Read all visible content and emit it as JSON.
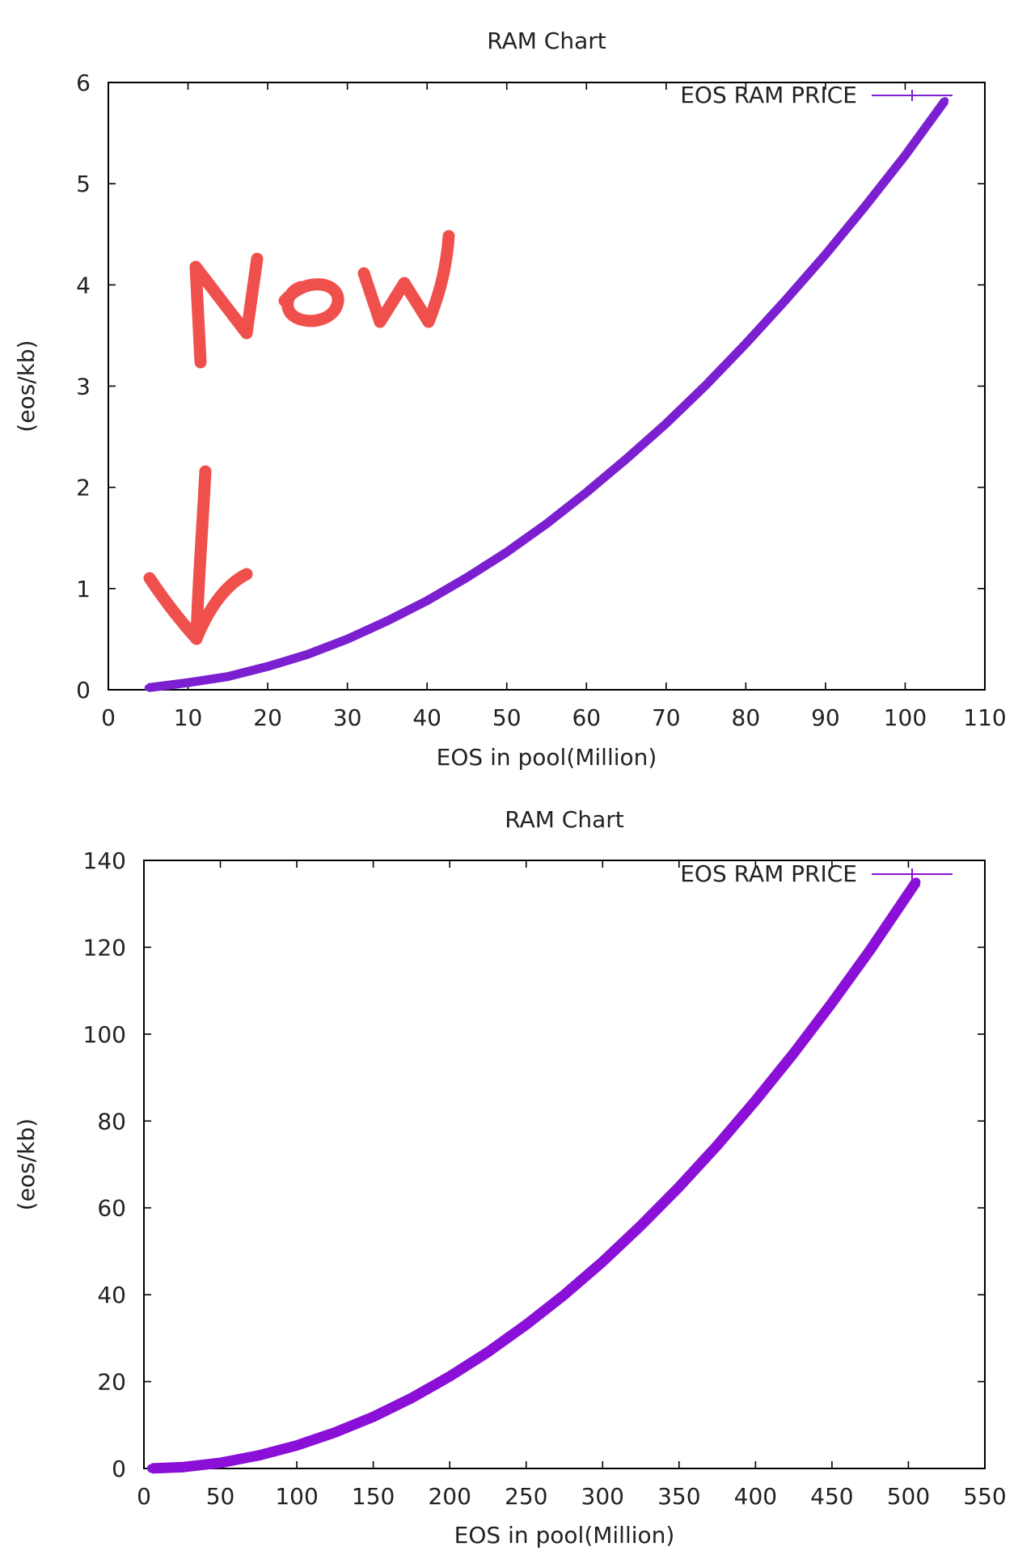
{
  "chart_data": [
    {
      "type": "line",
      "title": "RAM Chart",
      "xlabel": "EOS in pool(Million)",
      "ylabel": "(eos/kb)",
      "xlim": [
        0,
        110
      ],
      "ylim": [
        0,
        6
      ],
      "xticks": [
        "0",
        "10",
        "20",
        "30",
        "40",
        "50",
        "60",
        "70",
        "80",
        "90",
        "100",
        "110"
      ],
      "yticks": [
        "0",
        "1",
        "2",
        "3",
        "4",
        "5",
        "6"
      ],
      "grid": false,
      "legend_position": "top-right",
      "series": [
        {
          "name": "EOS RAM PRICE",
          "color": "#7b1fd0",
          "x": [
            5,
            10,
            15,
            20,
            25,
            30,
            35,
            40,
            45,
            50,
            55,
            60,
            65,
            70,
            75,
            80,
            85,
            90,
            95,
            100,
            105
          ],
          "y": [
            0.02,
            0.07,
            0.13,
            0.23,
            0.35,
            0.5,
            0.68,
            0.88,
            1.11,
            1.36,
            1.64,
            1.95,
            2.28,
            2.63,
            3.01,
            3.42,
            3.85,
            4.3,
            4.78,
            5.28,
            5.82
          ]
        }
      ],
      "annotation": {
        "text": "Now",
        "kind": "handwritten-arrow",
        "color": "#f0504c",
        "points_to": {
          "x": 11,
          "y": 0.1
        }
      }
    },
    {
      "type": "line",
      "title": "RAM Chart",
      "xlabel": "EOS in pool(Million)",
      "ylabel": "(eos/kb)",
      "xlim": [
        0,
        550
      ],
      "ylim": [
        0,
        140
      ],
      "xticks": [
        "0",
        "50",
        "100",
        "150",
        "200",
        "250",
        "300",
        "350",
        "400",
        "450",
        "500",
        "550"
      ],
      "yticks": [
        "0",
        "20",
        "40",
        "60",
        "80",
        "100",
        "120",
        "140"
      ],
      "grid": false,
      "legend_position": "top-right",
      "series": [
        {
          "name": "EOS RAM PRICE",
          "color": "#8a10d8",
          "x": [
            5,
            25,
            50,
            75,
            100,
            125,
            150,
            175,
            200,
            225,
            250,
            275,
            300,
            325,
            350,
            375,
            400,
            425,
            450,
            475,
            505
          ],
          "y": [
            0.01,
            0.3,
            1.3,
            3.0,
            5.3,
            8.3,
            11.9,
            16.2,
            21.2,
            26.8,
            33.1,
            40.0,
            47.6,
            55.9,
            64.8,
            74.4,
            84.7,
            95.6,
            107.2,
            119.4,
            135.0
          ]
        }
      ]
    }
  ]
}
